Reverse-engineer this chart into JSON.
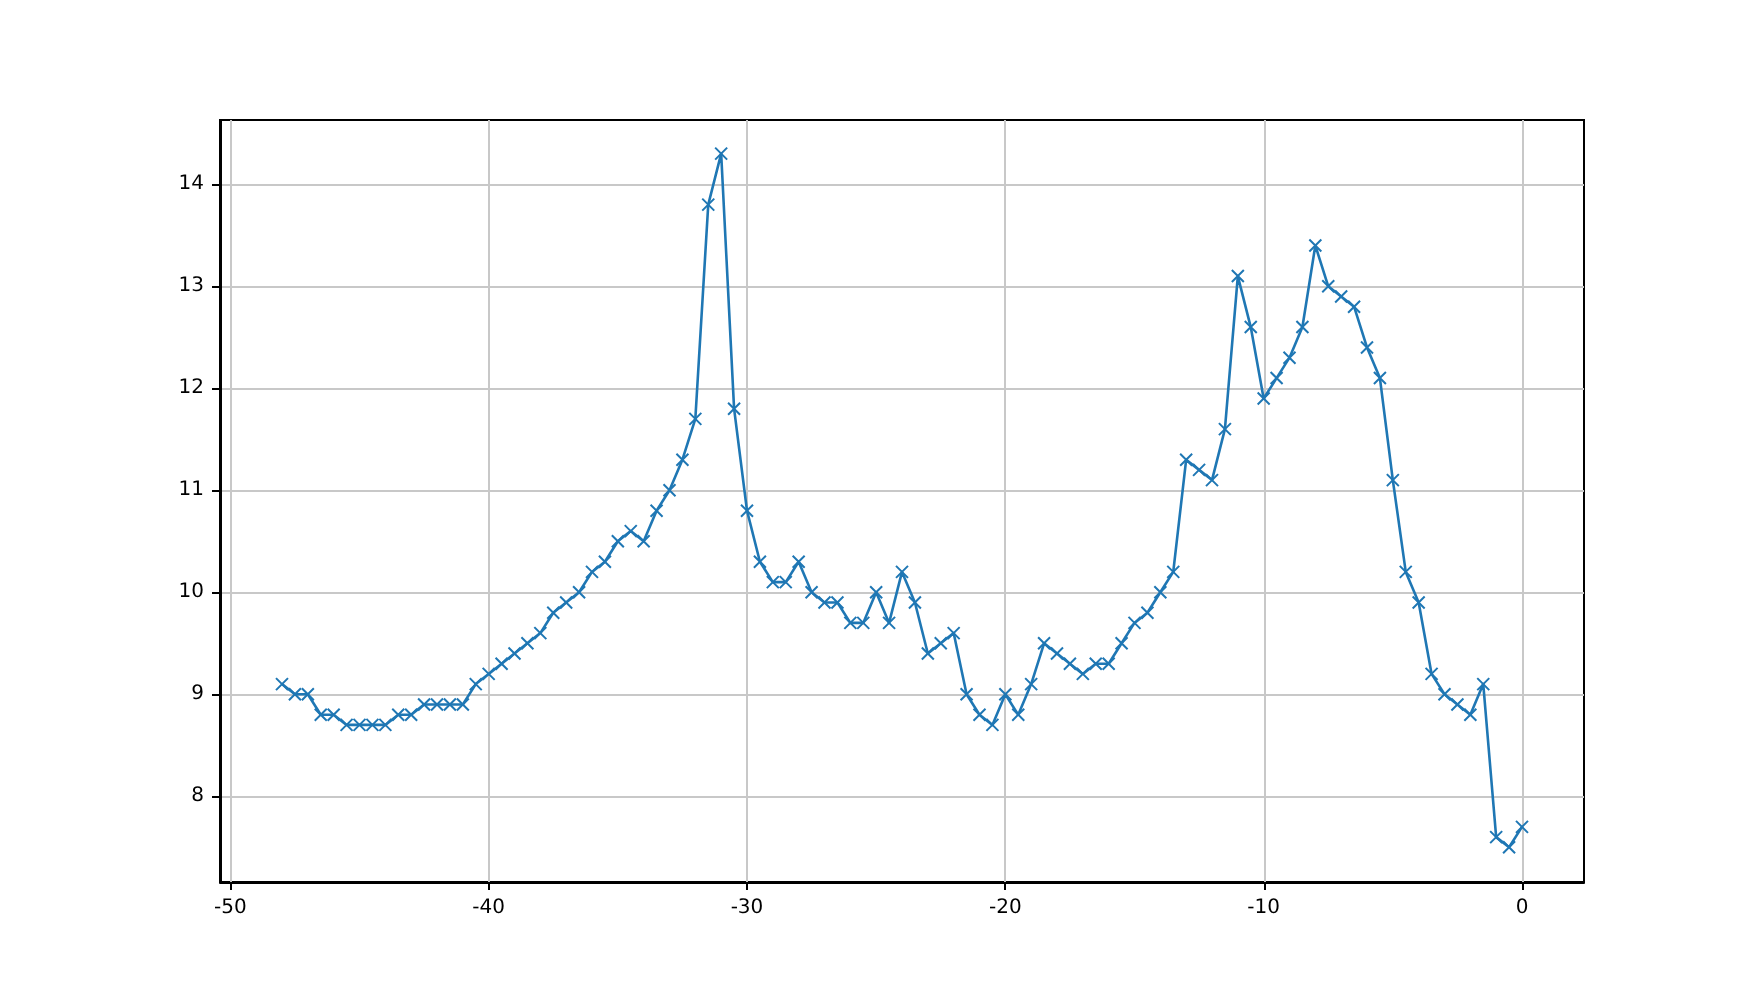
{
  "chart_data": {
    "type": "line",
    "marker": "cross",
    "grid": true,
    "xlim": [
      -50.4,
      2.4
    ],
    "xticks": [
      -50,
      -40,
      -30,
      -20,
      -10,
      0
    ],
    "ylim": [
      7.16,
      14.63
    ],
    "yticks": [
      8,
      9,
      10,
      11,
      12,
      13,
      14
    ],
    "x": [
      -48,
      -47.5,
      -47,
      -46.5,
      -46,
      -45.5,
      -45,
      -44.5,
      -44,
      -43.5,
      -43,
      -42.5,
      -42,
      -41.5,
      -41,
      -40.5,
      -40,
      -39.5,
      -39,
      -38.5,
      -38,
      -37.5,
      -37,
      -36.5,
      -36,
      -35.5,
      -35,
      -34.5,
      -34,
      -33.5,
      -33,
      -32.5,
      -32,
      -31.5,
      -31,
      -30.5,
      -30,
      -29.5,
      -29,
      -28.5,
      -28,
      -27.5,
      -27,
      -26.5,
      -26,
      -25.5,
      -25,
      -24.5,
      -24,
      -23.5,
      -23,
      -22.5,
      -22,
      -21.5,
      -21,
      -20.5,
      -20,
      -19.5,
      -19,
      -18.5,
      -18,
      -17.5,
      -17,
      -16.5,
      -16,
      -15.5,
      -15,
      -14.5,
      -14,
      -13.5,
      -13,
      -12.5,
      -12,
      -11.5,
      -11,
      -10.5,
      -10,
      -9.5,
      -9,
      -8.5,
      -8,
      -7.5,
      -7,
      -6.5,
      -6,
      -5.5,
      -5,
      -4.5,
      -4,
      -3.5,
      -3,
      -2.5,
      -2,
      -1.5,
      -1,
      -0.5,
      0
    ],
    "series": [
      {
        "color": "#1f77b4",
        "values": [
          9.1,
          9.0,
          9.0,
          8.8,
          8.8,
          8.7,
          8.7,
          8.7,
          8.7,
          8.8,
          8.8,
          8.9,
          8.9,
          8.9,
          8.9,
          9.1,
          9.2,
          9.3,
          9.4,
          9.5,
          9.6,
          9.8,
          9.9,
          10.0,
          10.2,
          10.3,
          10.5,
          10.6,
          10.5,
          10.8,
          11.0,
          11.3,
          11.7,
          13.8,
          14.3,
          11.8,
          10.8,
          10.3,
          10.1,
          10.1,
          10.3,
          10.0,
          9.9,
          9.9,
          9.7,
          9.7,
          10.0,
          9.7,
          10.2,
          9.9,
          9.4,
          9.5,
          9.6,
          9.0,
          8.8,
          8.7,
          9.0,
          8.8,
          9.1,
          9.5,
          9.4,
          9.3,
          9.2,
          9.3,
          9.3,
          9.5,
          9.7,
          9.8,
          10.0,
          10.2,
          11.3,
          11.2,
          11.1,
          11.6,
          13.1,
          12.6,
          11.9,
          12.1,
          12.3,
          12.6,
          13.4,
          13.0,
          12.9,
          12.8,
          12.4,
          12.1,
          11.1,
          10.2,
          9.9,
          9.2,
          9.0,
          8.9,
          8.8,
          9.1,
          7.6,
          7.5,
          7.7
        ]
      }
    ]
  }
}
